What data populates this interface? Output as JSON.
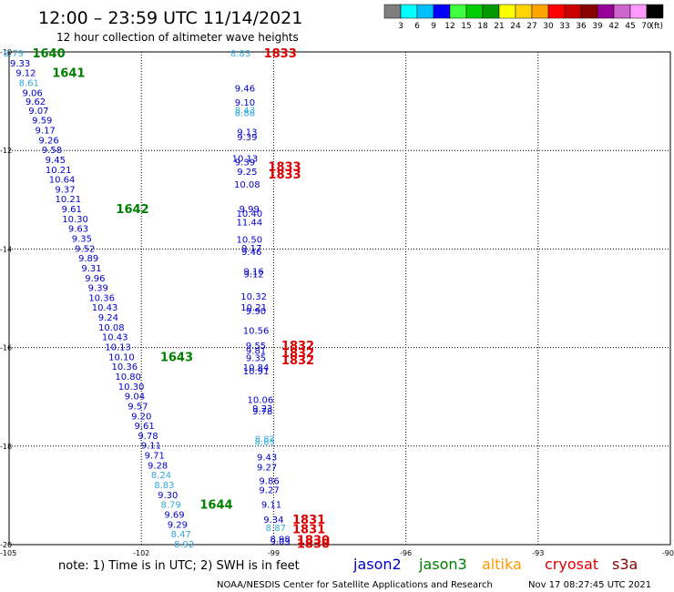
{
  "header": {
    "title": "12:00 – 23:59 UTC 11/14/2021",
    "subtitle": "12 hour collection of altimeter wave heights"
  },
  "colorbar": {
    "labels": [
      "3",
      "6",
      "9",
      "12",
      "15",
      "18",
      "21",
      "24",
      "27",
      "30",
      "33",
      "36",
      "39",
      "42",
      "45",
      "70"
    ],
    "unit": "(ft)",
    "colors": [
      "#7f7f7f",
      "#00ffff",
      "#00bfff",
      "#0000ff",
      "#40ff40",
      "#00cc00",
      "#009900",
      "#ffff00",
      "#ffd400",
      "#ffa500",
      "#ff0000",
      "#cc0000",
      "#8b0000",
      "#990099",
      "#cc66cc",
      "#ff99ff",
      "#000000"
    ]
  },
  "note": "note:  1) Time is in UTC;  2) SWH is in feet",
  "satellites": [
    {
      "name": "jason2",
      "color": "#0000cc"
    },
    {
      "name": "jason3",
      "color": "#008000"
    },
    {
      "name": "altika",
      "color": "#ff9900"
    },
    {
      "name": "cryosat",
      "color": "#dd0000"
    },
    {
      "name": "s3a",
      "color": "#880000"
    }
  ],
  "footer": {
    "credit": "NOAA/NESDIS Center for Satellite Applications and Research",
    "generated": "Nov 17 08:27:45 UTC 2021"
  },
  "chart_data": {
    "type": "scatter",
    "xlim": [
      -105,
      -90
    ],
    "ylim": [
      -20,
      -10
    ],
    "x_ticks": [
      -105,
      -102,
      -99,
      -96,
      -93,
      -90
    ],
    "y_ticks": [
      -10,
      -12,
      -14,
      -16,
      -18,
      -20
    ],
    "grid": true,
    "series": [
      {
        "name": "track-1",
        "points": [
          {
            "lon": -104.9,
            "lat": -10.02,
            "v": "8.79",
            "c": "#33aadd"
          },
          {
            "lon": -104.75,
            "lat": -10.22,
            "v": "9.33",
            "c": "#0000cc"
          },
          {
            "lon": -104.62,
            "lat": -10.42,
            "v": "9.12",
            "c": "#0000cc"
          },
          {
            "lon": -104.55,
            "lat": -10.62,
            "v": "8.61",
            "c": "#33aadd"
          },
          {
            "lon": -104.47,
            "lat": -10.82,
            "v": "9.06",
            "c": "#0000cc"
          },
          {
            "lon": -104.4,
            "lat": -11.0,
            "v": "9.62",
            "c": "#0000cc"
          },
          {
            "lon": -104.33,
            "lat": -11.18,
            "v": "9.07",
            "c": "#0000cc"
          },
          {
            "lon": -104.25,
            "lat": -11.38,
            "v": "9.59",
            "c": "#0000cc"
          },
          {
            "lon": -104.18,
            "lat": -11.58,
            "v": "9.17",
            "c": "#0000cc"
          },
          {
            "lon": -104.1,
            "lat": -11.78,
            "v": "9.26",
            "c": "#0000cc"
          },
          {
            "lon": -104.03,
            "lat": -11.98,
            "v": "9.58",
            "c": "#0000cc"
          },
          {
            "lon": -103.95,
            "lat": -12.18,
            "v": "9.45",
            "c": "#0000cc"
          },
          {
            "lon": -103.88,
            "lat": -12.38,
            "v": "10.21",
            "c": "#0000cc"
          },
          {
            "lon": -103.8,
            "lat": -12.58,
            "v": "10.64",
            "c": "#0000cc"
          },
          {
            "lon": -103.73,
            "lat": -12.78,
            "v": "9.37",
            "c": "#0000cc"
          },
          {
            "lon": -103.66,
            "lat": -12.98,
            "v": "10.21",
            "c": "#0000cc"
          },
          {
            "lon": -103.58,
            "lat": -13.18,
            "v": "9.61",
            "c": "#0000cc"
          },
          {
            "lon": -103.5,
            "lat": -13.38,
            "v": "10.30",
            "c": "#0000cc"
          },
          {
            "lon": -103.43,
            "lat": -13.58,
            "v": "9.63",
            "c": "#0000cc"
          },
          {
            "lon": -103.35,
            "lat": -13.78,
            "v": "9.35",
            "c": "#0000cc"
          },
          {
            "lon": -103.28,
            "lat": -13.98,
            "v": "9.52",
            "c": "#0000cc"
          },
          {
            "lon": -103.2,
            "lat": -14.18,
            "v": "9.89",
            "c": "#0000cc"
          },
          {
            "lon": -103.13,
            "lat": -14.38,
            "v": "9.31",
            "c": "#0000cc"
          },
          {
            "lon": -103.05,
            "lat": -14.58,
            "v": "9.96",
            "c": "#0000cc"
          },
          {
            "lon": -102.98,
            "lat": -14.78,
            "v": "9.39",
            "c": "#0000cc"
          },
          {
            "lon": -102.9,
            "lat": -14.98,
            "v": "10.36",
            "c": "#0000cc"
          },
          {
            "lon": -102.83,
            "lat": -15.18,
            "v": "10.43",
            "c": "#0000cc"
          },
          {
            "lon": -102.75,
            "lat": -15.38,
            "v": "9.24",
            "c": "#0000cc"
          },
          {
            "lon": -102.68,
            "lat": -15.58,
            "v": "10.08",
            "c": "#0000cc"
          },
          {
            "lon": -102.6,
            "lat": -15.78,
            "v": "10.43",
            "c": "#0000cc"
          },
          {
            "lon": -102.53,
            "lat": -15.98,
            "v": "10.13",
            "c": "#0000cc"
          },
          {
            "lon": -102.45,
            "lat": -16.18,
            "v": "10.10",
            "c": "#0000cc"
          },
          {
            "lon": -102.38,
            "lat": -16.38,
            "v": "10.36",
            "c": "#0000cc"
          },
          {
            "lon": -102.3,
            "lat": -16.58,
            "v": "10.80",
            "c": "#0000cc"
          },
          {
            "lon": -102.23,
            "lat": -16.78,
            "v": "10.30",
            "c": "#0000cc"
          },
          {
            "lon": -102.15,
            "lat": -16.98,
            "v": "9.04",
            "c": "#0000cc"
          },
          {
            "lon": -102.08,
            "lat": -17.18,
            "v": "9.57",
            "c": "#0000cc"
          },
          {
            "lon": -102.0,
            "lat": -17.38,
            "v": "9.20",
            "c": "#0000cc"
          },
          {
            "lon": -101.93,
            "lat": -17.58,
            "v": "9.61",
            "c": "#0000cc"
          },
          {
            "lon": -101.85,
            "lat": -17.78,
            "v": "9.78",
            "c": "#0000cc"
          },
          {
            "lon": -101.78,
            "lat": -17.98,
            "v": "9.11",
            "c": "#0000cc"
          },
          {
            "lon": -101.7,
            "lat": -18.18,
            "v": "9.71",
            "c": "#0000cc"
          },
          {
            "lon": -101.63,
            "lat": -18.38,
            "v": "9.28",
            "c": "#0000cc"
          },
          {
            "lon": -101.55,
            "lat": -18.58,
            "v": "8.24",
            "c": "#33aadd"
          },
          {
            "lon": -101.48,
            "lat": -18.78,
            "v": "8.83",
            "c": "#33aadd"
          },
          {
            "lon": -101.4,
            "lat": -18.98,
            "v": "9.30",
            "c": "#0000cc"
          },
          {
            "lon": -101.33,
            "lat": -19.18,
            "v": "8.79",
            "c": "#33aadd"
          },
          {
            "lon": -101.25,
            "lat": -19.38,
            "v": "9.69",
            "c": "#0000cc"
          },
          {
            "lon": -101.18,
            "lat": -19.58,
            "v": "9.29",
            "c": "#0000cc"
          },
          {
            "lon": -101.1,
            "lat": -19.78,
            "v": "8.47",
            "c": "#33aadd"
          },
          {
            "lon": -101.03,
            "lat": -19.98,
            "v": "8.92",
            "c": "#33aadd"
          }
        ]
      },
      {
        "name": "track-2",
        "points": [
          {
            "lon": -99.75,
            "lat": -10.02,
            "v": "8.83",
            "c": "#33aadd"
          },
          {
            "lon": -99.65,
            "lat": -10.73,
            "v": "9.46",
            "c": "#0000cc"
          },
          {
            "lon": -99.65,
            "lat": -11.02,
            "v": "9.10",
            "c": "#0000cc"
          },
          {
            "lon": -99.65,
            "lat": -11.17,
            "v": "8.43",
            "c": "#33aadd"
          },
          {
            "lon": -99.65,
            "lat": -11.23,
            "v": "8.88",
            "c": "#33aadd"
          },
          {
            "lon": -99.6,
            "lat": -11.62,
            "v": "9.13",
            "c": "#0000cc"
          },
          {
            "lon": -99.6,
            "lat": -11.72,
            "v": "9.39",
            "c": "#0000cc"
          },
          {
            "lon": -99.65,
            "lat": -12.15,
            "v": "10.13",
            "c": "#0000cc"
          },
          {
            "lon": -99.65,
            "lat": -12.23,
            "v": "9.39",
            "c": "#0000cc"
          },
          {
            "lon": -99.6,
            "lat": -12.42,
            "v": "9.25",
            "c": "#0000cc"
          },
          {
            "lon": -99.6,
            "lat": -12.68,
            "v": "10.08",
            "c": "#0000cc"
          },
          {
            "lon": -99.55,
            "lat": -13.18,
            "v": "9.99",
            "c": "#0000cc"
          },
          {
            "lon": -99.55,
            "lat": -13.27,
            "v": "10.40",
            "c": "#0000cc"
          },
          {
            "lon": -99.55,
            "lat": -13.45,
            "v": "11.44",
            "c": "#0000cc"
          },
          {
            "lon": -99.55,
            "lat": -13.8,
            "v": "10.50",
            "c": "#0000cc"
          },
          {
            "lon": -99.5,
            "lat": -13.97,
            "v": "9.17",
            "c": "#0000cc"
          },
          {
            "lon": -99.5,
            "lat": -14.05,
            "v": "9.46",
            "c": "#0000cc"
          },
          {
            "lon": -99.45,
            "lat": -14.45,
            "v": "9.16",
            "c": "#0000cc"
          },
          {
            "lon": -99.45,
            "lat": -14.5,
            "v": "9.12",
            "c": "#0000cc"
          },
          {
            "lon": -99.45,
            "lat": -14.95,
            "v": "10.32",
            "c": "#0000cc"
          },
          {
            "lon": -99.45,
            "lat": -15.18,
            "v": "10.21",
            "c": "#0000cc"
          },
          {
            "lon": -99.4,
            "lat": -15.25,
            "v": "9.90",
            "c": "#0000cc"
          },
          {
            "lon": -99.4,
            "lat": -15.65,
            "v": "10.56",
            "c": "#0000cc"
          },
          {
            "lon": -99.4,
            "lat": -15.95,
            "v": "9.55",
            "c": "#0000cc"
          },
          {
            "lon": -99.4,
            "lat": -16.05,
            "v": "9.81",
            "c": "#0000cc"
          },
          {
            "lon": -99.4,
            "lat": -16.2,
            "v": "9.35",
            "c": "#0000cc"
          },
          {
            "lon": -99.4,
            "lat": -16.4,
            "v": "10.84",
            "c": "#0000cc"
          },
          {
            "lon": -99.4,
            "lat": -16.47,
            "v": "10.91",
            "c": "#0000cc"
          },
          {
            "lon": -99.3,
            "lat": -17.05,
            "v": "10.06",
            "c": "#0000cc"
          },
          {
            "lon": -99.25,
            "lat": -17.23,
            "v": "9.23",
            "c": "#0000cc"
          },
          {
            "lon": -99.25,
            "lat": -17.28,
            "v": "9.78",
            "c": "#0000cc"
          },
          {
            "lon": -99.2,
            "lat": -17.85,
            "v": "8.82",
            "c": "#33aadd"
          },
          {
            "lon": -99.2,
            "lat": -17.9,
            "v": "8.85",
            "c": "#33aadd"
          },
          {
            "lon": -99.15,
            "lat": -18.22,
            "v": "9.43",
            "c": "#0000cc"
          },
          {
            "lon": -99.15,
            "lat": -18.42,
            "v": "9.27",
            "c": "#0000cc"
          },
          {
            "lon": -99.1,
            "lat": -18.7,
            "v": "9.86",
            "c": "#0000cc"
          },
          {
            "lon": -99.1,
            "lat": -18.88,
            "v": "9.27",
            "c": "#0000cc"
          },
          {
            "lon": -99.05,
            "lat": -19.18,
            "v": "9.11",
            "c": "#0000cc"
          },
          {
            "lon": -99.0,
            "lat": -19.48,
            "v": "9.34",
            "c": "#0000cc"
          },
          {
            "lon": -98.95,
            "lat": -19.65,
            "v": "8.87",
            "c": "#33aadd"
          },
          {
            "lon": -98.85,
            "lat": -19.88,
            "v": "8.98",
            "c": "#0000cc"
          },
          {
            "lon": -98.85,
            "lat": -19.93,
            "v": "9.03",
            "c": "#0000cc"
          }
        ]
      }
    ],
    "times": [
      {
        "lon": -104.1,
        "lat": -10.02,
        "t": "1640",
        "c": "#008000"
      },
      {
        "lon": -103.65,
        "lat": -10.42,
        "t": "1641",
        "c": "#008000"
      },
      {
        "lon": -102.2,
        "lat": -13.18,
        "t": "1642",
        "c": "#008000"
      },
      {
        "lon": -101.2,
        "lat": -16.18,
        "t": "1643",
        "c": "#008000"
      },
      {
        "lon": -100.3,
        "lat": -19.18,
        "t": "1644",
        "c": "#008000"
      },
      {
        "lon": -98.85,
        "lat": -10.02,
        "t": "1833",
        "c": "#dd0000"
      },
      {
        "lon": -98.75,
        "lat": -12.32,
        "t": "1833",
        "c": "#dd0000"
      },
      {
        "lon": -98.75,
        "lat": -12.48,
        "t": "1833",
        "c": "#dd0000"
      },
      {
        "lon": -98.45,
        "lat": -15.95,
        "t": "1832",
        "c": "#dd0000"
      },
      {
        "lon": -98.45,
        "lat": -16.1,
        "t": "1832",
        "c": "#dd0000"
      },
      {
        "lon": -98.45,
        "lat": -16.25,
        "t": "1832",
        "c": "#dd0000"
      },
      {
        "lon": -98.2,
        "lat": -19.48,
        "t": "1831",
        "c": "#dd0000"
      },
      {
        "lon": -98.2,
        "lat": -19.68,
        "t": "1831",
        "c": "#dd0000"
      },
      {
        "lon": -98.1,
        "lat": -19.9,
        "t": "1830",
        "c": "#dd0000"
      },
      {
        "lon": -98.1,
        "lat": -19.97,
        "t": "1830",
        "c": "#dd0000"
      }
    ]
  }
}
